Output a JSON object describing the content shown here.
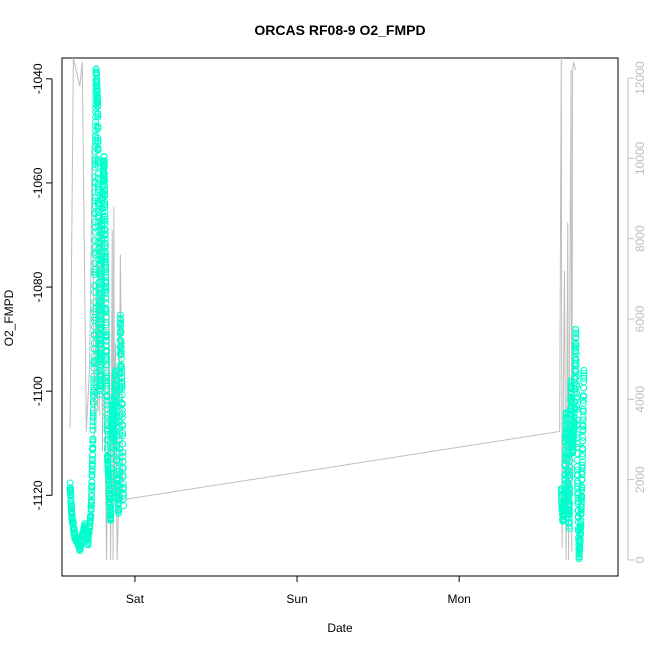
{
  "chart_data": {
    "type": "scatter",
    "title": "ORCAS RF08-9 O2_FMPD",
    "xlabel": "Date",
    "ylabel": "O2_FMPD",
    "x_tick_labels": [
      "Sat",
      "Sun",
      "Mon"
    ],
    "x_ticks_days": [
      1,
      2,
      3
    ],
    "x_range_days": [
      0.55,
      3.98
    ],
    "ylim_left": [
      -1135.5,
      -1036
    ],
    "y_ticks_left": [
      -1120,
      -1100,
      -1080,
      -1060,
      -1040
    ],
    "ylim_right": [
      -400,
      12500
    ],
    "y_ticks_right": [
      0,
      2000,
      4000,
      6000,
      8000,
      10000,
      12000
    ],
    "grid": false,
    "series": [
      {
        "axis": "left",
        "style": "points",
        "color": "#00FFCC",
        "segments": [
          [
            [
              0.6,
              -1118
            ],
            [
              0.61,
              -1124
            ],
            [
              0.63,
              -1128
            ],
            [
              0.66,
              -1130
            ],
            [
              0.69,
              -1126
            ],
            [
              0.71,
              -1129
            ],
            [
              0.73,
              -1123
            ],
            [
              0.74,
              -1110
            ],
            [
              0.75,
              -1090
            ],
            [
              0.755,
              -1060
            ],
            [
              0.76,
              -1038
            ],
            [
              0.77,
              -1045
            ],
            [
              0.775,
              -1065
            ],
            [
              0.78,
              -1085
            ],
            [
              0.785,
              -1100
            ],
            [
              0.79,
              -1080
            ],
            [
              0.8,
              -1062
            ],
            [
              0.81,
              -1055
            ],
            [
              0.815,
              -1068
            ],
            [
              0.82,
              -1080
            ],
            [
              0.825,
              -1095
            ],
            [
              0.83,
              -1112
            ],
            [
              0.84,
              -1118
            ],
            [
              0.85,
              -1125
            ],
            [
              0.86,
              -1102
            ],
            [
              0.87,
              -1110
            ],
            [
              0.88,
              -1096
            ],
            [
              0.89,
              -1117
            ],
            [
              0.9,
              -1123
            ],
            [
              0.91,
              -1085
            ],
            [
              0.92,
              -1100
            ],
            [
              0.93,
              -1122
            ]
          ],
          [
            [
              3.63,
              -1119
            ],
            [
              3.64,
              -1125
            ],
            [
              3.65,
              -1121
            ],
            [
              3.66,
              -1104
            ],
            [
              3.67,
              -1118
            ],
            [
              3.68,
              -1126
            ],
            [
              3.69,
              -1098
            ],
            [
              3.7,
              -1112
            ],
            [
              3.71,
              -1105
            ],
            [
              3.72,
              -1088
            ],
            [
              3.73,
              -1116
            ],
            [
              3.74,
              -1132
            ],
            [
              3.75,
              -1126
            ],
            [
              3.76,
              -1114
            ],
            [
              3.77,
              -1096
            ]
          ]
        ]
      },
      {
        "axis": "right",
        "style": "line",
        "color": "#BEBEBE",
        "values": [
          [
            0.6,
            3300
          ],
          [
            0.62,
            12500
          ],
          [
            0.66,
            11800
          ],
          [
            0.675,
            12400
          ],
          [
            0.7,
            3200
          ],
          [
            0.72,
            4800
          ],
          [
            0.73,
            7700
          ],
          [
            0.735,
            10300
          ],
          [
            0.74,
            8900
          ],
          [
            0.75,
            3100
          ],
          [
            0.76,
            6900
          ],
          [
            0.77,
            3700
          ],
          [
            0.775,
            8400
          ],
          [
            0.78,
            3600
          ],
          [
            0.79,
            9700
          ],
          [
            0.8,
            2700
          ],
          [
            0.81,
            8000
          ],
          [
            0.82,
            1500
          ],
          [
            0.825,
            0
          ],
          [
            0.84,
            6200
          ],
          [
            0.85,
            0
          ],
          [
            0.86,
            8200
          ],
          [
            0.865,
            0
          ],
          [
            0.87,
            8800
          ],
          [
            0.875,
            1400
          ],
          [
            0.88,
            5400
          ],
          [
            0.89,
            0
          ],
          [
            0.9,
            1400
          ],
          [
            0.91,
            7600
          ],
          [
            0.925,
            1500
          ],
          [
            3.62,
            3200
          ],
          [
            3.63,
            12500
          ],
          [
            3.635,
            300
          ],
          [
            3.65,
            7200
          ],
          [
            3.66,
            0
          ],
          [
            3.67,
            8400
          ],
          [
            3.675,
            0
          ],
          [
            3.69,
            12200
          ],
          [
            3.695,
            200
          ],
          [
            3.7,
            12100
          ],
          [
            3.705,
            12400
          ],
          [
            3.72,
            12200
          ]
        ]
      }
    ]
  }
}
